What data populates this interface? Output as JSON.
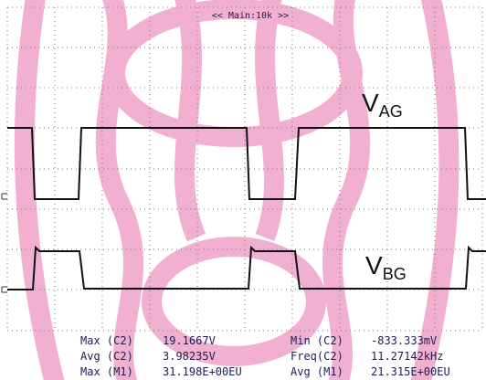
{
  "header": "<< Main:10k >>",
  "labels": [
    {
      "main": "V",
      "sub": "AG"
    },
    {
      "main": "V",
      "sub": "BG"
    }
  ],
  "measurements": [
    [
      {
        "name": "Max (C2)",
        "value": "19.1667V"
      },
      {
        "name": "Min (C2)",
        "value": "-833.333mV"
      }
    ],
    [
      {
        "name": "Avg (C2)",
        "value": "3.98235V"
      },
      {
        "name": "Freq(C2)",
        "value": "11.27142kHz"
      }
    ],
    [
      {
        "name": "Max (M1)",
        "value": "31.198E+00EU"
      },
      {
        "name": "Avg (M1)",
        "value": "21.315E+00EU"
      }
    ]
  ]
}
